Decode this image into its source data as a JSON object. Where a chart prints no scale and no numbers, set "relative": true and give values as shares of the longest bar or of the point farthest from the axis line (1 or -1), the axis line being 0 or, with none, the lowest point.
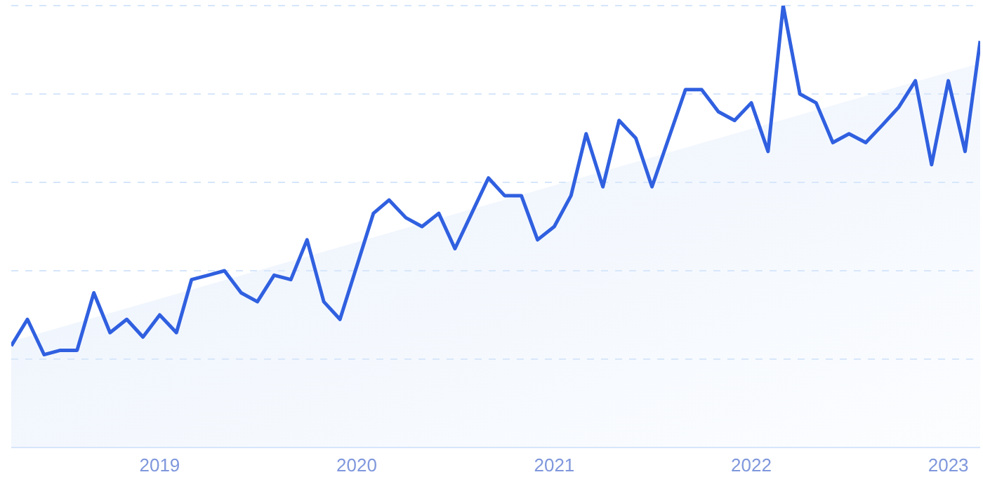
{
  "chart_data": {
    "type": "line",
    "relative": true,
    "grid": "y",
    "x": [
      "2018-04",
      "2018-05",
      "2018-06",
      "2018-07",
      "2018-08",
      "2018-09",
      "2018-10",
      "2018-11",
      "2018-12",
      "2019-01",
      "2019-02",
      "2019-03",
      "2019-04",
      "2019-05",
      "2019-06",
      "2019-07",
      "2019-08",
      "2019-09",
      "2019-10",
      "2019-11",
      "2019-12",
      "2020-01",
      "2020-02",
      "2020-03",
      "2020-04",
      "2020-05",
      "2020-06",
      "2020-07",
      "2020-08",
      "2020-09",
      "2020-10",
      "2020-11",
      "2020-12",
      "2021-01",
      "2021-02",
      "2021-03",
      "2021-04",
      "2021-05",
      "2021-06",
      "2021-07",
      "2021-08",
      "2021-09",
      "2021-10",
      "2021-11",
      "2021-12",
      "2022-01",
      "2022-02",
      "2022-03",
      "2022-04",
      "2022-05",
      "2022-06",
      "2022-07",
      "2022-08",
      "2022-09",
      "2022-10",
      "2022-11",
      "2022-12",
      "2023-01",
      "2023-02",
      "2023-03"
    ],
    "xlim": [
      "2018-04",
      "2023-03"
    ],
    "xticks": [
      "2019",
      "2020",
      "2021",
      "2022",
      "2023"
    ],
    "series": [
      {
        "type": "area",
        "color": "#dce9fb",
        "x": [
          "2018-04",
          "2023-03"
        ],
        "values": [
          0.24,
          0.87
        ]
      },
      {
        "color": "#3060e0",
        "values": [
          0.23,
          0.29,
          0.21,
          0.22,
          0.22,
          0.35,
          0.26,
          0.29,
          0.25,
          0.3,
          0.26,
          0.38,
          0.39,
          0.4,
          0.35,
          0.33,
          0.39,
          0.38,
          0.47,
          0.33,
          0.29,
          0.41,
          0.53,
          0.56,
          0.52,
          0.5,
          0.53,
          0.45,
          0.53,
          0.61,
          0.57,
          0.57,
          0.47,
          0.5,
          0.57,
          0.71,
          0.59,
          0.74,
          0.7,
          0.59,
          0.7,
          0.81,
          0.81,
          0.76,
          0.74,
          0.78,
          0.67,
          1,
          0.8,
          0.78,
          0.69,
          0.71,
          0.69,
          0.73,
          0.77,
          0.83,
          0.64,
          0.83,
          0.67,
          0.92
        ]
      }
    ]
  }
}
